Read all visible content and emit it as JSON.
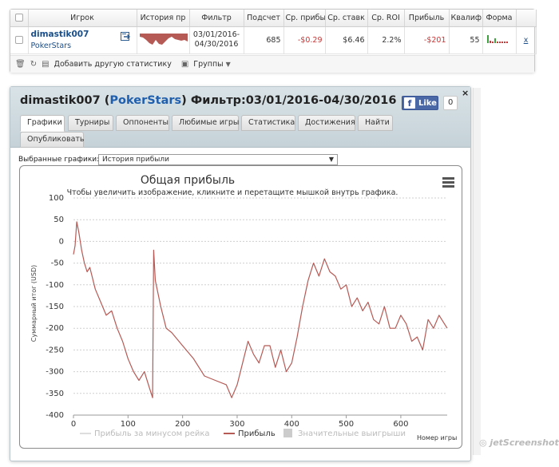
{
  "stats_table": {
    "headers": [
      "Игрок",
      "История пр",
      "Фильтр",
      "Подсчет",
      "Ср. прибы",
      "Ср. ставк",
      "Ср. ROI",
      "Прибыль",
      "Квалиф",
      "Форма"
    ],
    "row": {
      "player": "dimastik007",
      "site": "PokerStars",
      "filter_line1": "03/01/2016-",
      "filter_line2": "04/30/2016",
      "count": "685",
      "avg_profit": "-$0.29",
      "avg_stake": "$6.46",
      "avg_roi": "2.2%",
      "profit": "-$201",
      "qualif": "55",
      "remove": "x"
    },
    "toolbar": {
      "add_stats": "Добавить другую статистику",
      "groups": "Группы"
    }
  },
  "panel": {
    "title_player": "dimastik007",
    "title_site": "PokerStars",
    "title_filter": "Фильтр:03/01/2016-04/30/2016",
    "like_label": "Like",
    "like_count": "0",
    "close": "×",
    "tabs": [
      "Графики",
      "Турниры",
      "Оппоненты",
      "Любимые игры",
      "Статистика",
      "Достижения",
      "Найти",
      "Опубликовать"
    ],
    "graph_select_label": "Выбранные графики:",
    "graph_select_value": "История прибыли"
  },
  "chart_data": {
    "type": "line",
    "title": "Общая прибыль",
    "subtitle": "Чтобы увеличить изображение, кликните и перетащите мышкой внутрь графика.",
    "ylabel": "Суммарный итог (USD)",
    "xlabel": "Номер игры",
    "xlim": [
      0,
      685
    ],
    "ylim": [
      -400,
      100
    ],
    "xticks": [
      0,
      100,
      200,
      300,
      400,
      500,
      600
    ],
    "yticks": [
      100,
      50,
      0,
      -50,
      -100,
      -150,
      -200,
      -250,
      -300,
      -350,
      -400
    ],
    "grid": true,
    "legend_position": "bottom",
    "legend": [
      {
        "name": "Прибыль за минусом рейка",
        "color": "#dddddd",
        "shape": "line"
      },
      {
        "name": "Прибыль",
        "color": "#b55a55",
        "shape": "line"
      },
      {
        "name": "Значительные выигрыши",
        "color": "#cccccc",
        "shape": "square"
      }
    ],
    "series": [
      {
        "name": "Прибыль",
        "color": "#b55a55",
        "x": [
          0,
          3,
          6,
          10,
          15,
          20,
          25,
          30,
          40,
          50,
          60,
          70,
          80,
          90,
          100,
          110,
          120,
          130,
          140,
          145,
          147,
          150,
          160,
          170,
          180,
          200,
          220,
          240,
          260,
          280,
          290,
          300,
          310,
          320,
          330,
          340,
          350,
          360,
          370,
          380,
          390,
          400,
          410,
          420,
          430,
          440,
          450,
          460,
          470,
          480,
          490,
          500,
          510,
          520,
          530,
          540,
          550,
          560,
          570,
          580,
          590,
          600,
          610,
          620,
          630,
          640,
          650,
          660,
          670,
          685
        ],
        "y": [
          -30,
          -10,
          45,
          20,
          -20,
          -50,
          -70,
          -60,
          -110,
          -140,
          -170,
          -160,
          -200,
          -230,
          -270,
          -300,
          -320,
          -300,
          -340,
          -360,
          -20,
          -90,
          -150,
          -200,
          -210,
          -240,
          -270,
          -310,
          -320,
          -330,
          -360,
          -330,
          -280,
          -230,
          -260,
          -280,
          -240,
          -240,
          -290,
          -250,
          -300,
          -280,
          -220,
          -150,
          -90,
          -50,
          -80,
          -40,
          -70,
          -80,
          -110,
          -100,
          -150,
          -130,
          -160,
          -140,
          -180,
          -190,
          -150,
          -200,
          -200,
          -170,
          -190,
          -230,
          -220,
          -250,
          -180,
          -200,
          -170,
          -200
        ]
      }
    ]
  }
}
